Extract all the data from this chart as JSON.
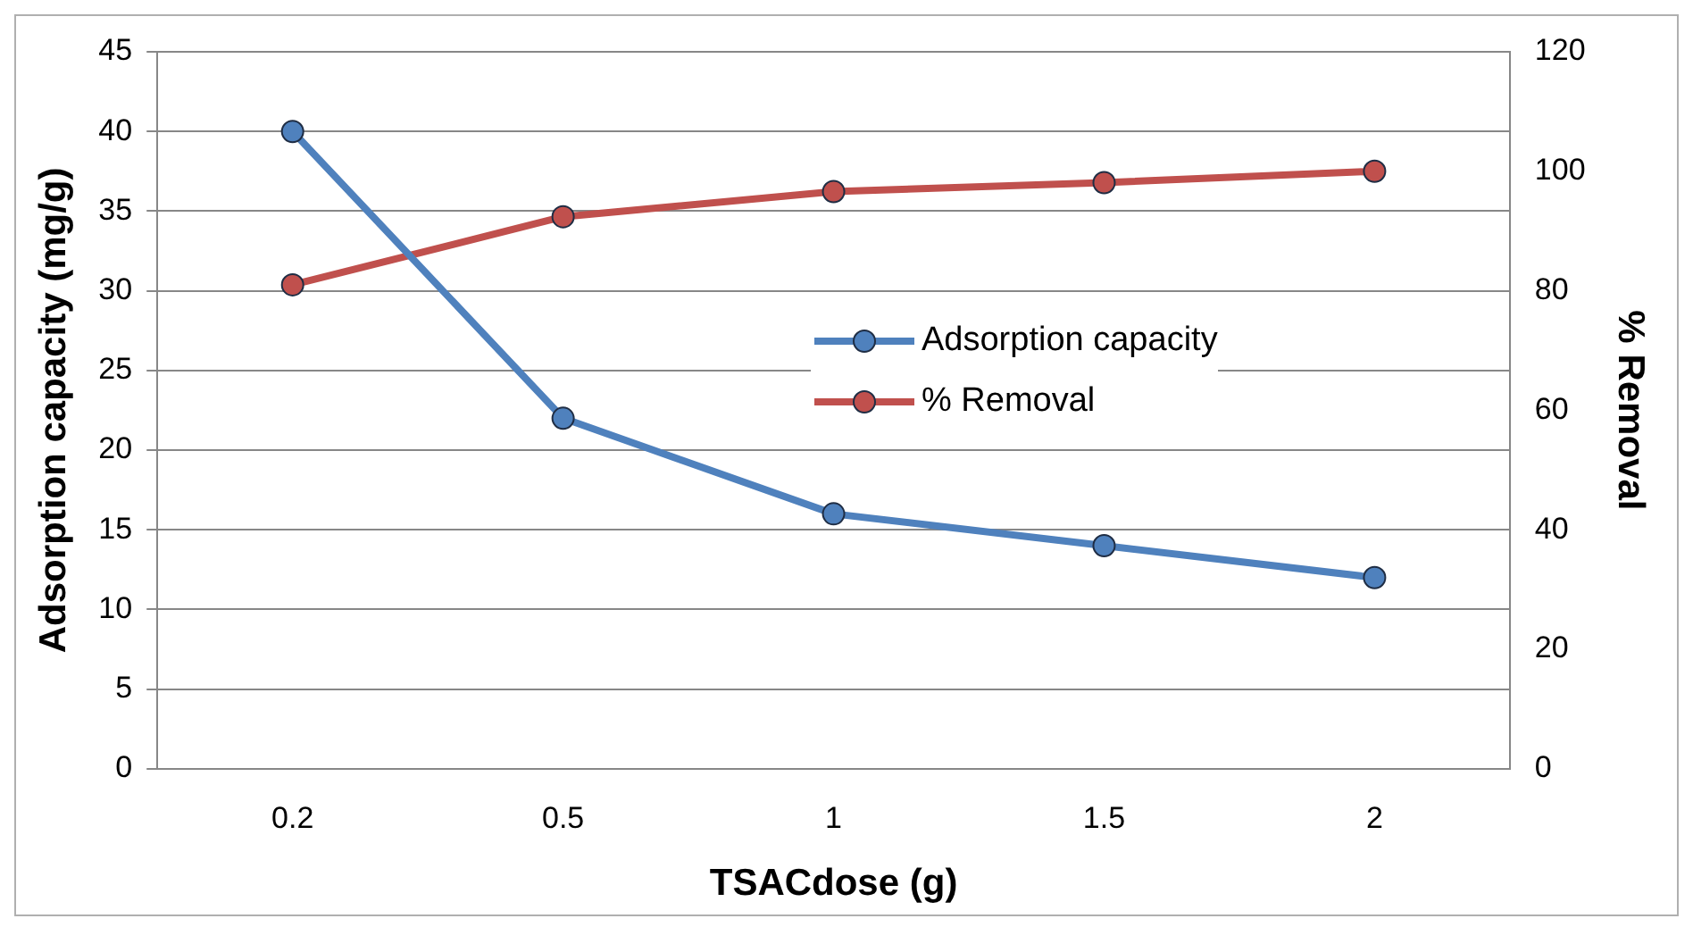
{
  "chart_data": {
    "type": "line",
    "xlabel": "TSACdose (g)",
    "ylabel": "Adsorption capacity (mg/g)",
    "y2label": "% Removal",
    "categories": [
      "0.2",
      "0.5",
      "1",
      "1.5",
      "2"
    ],
    "series": [
      {
        "name": "Adsorption capacity",
        "color": "#4f81bd",
        "values": [
          40,
          22,
          16,
          14,
          12
        ]
      },
      {
        "name": "% Removal",
        "color": "#c0504d",
        "values": [
          81,
          92.4,
          96.6,
          98.1,
          100
        ],
        "axis": "y2"
      }
    ],
    "ylim": [
      0,
      45
    ],
    "yticks": [
      0,
      5,
      10,
      15,
      20,
      25,
      30,
      35,
      40,
      45
    ],
    "y2lim": [
      0,
      120
    ],
    "y2ticks": [
      0,
      20,
      40,
      60,
      80,
      100,
      120
    ],
    "grid": "y",
    "legend": "right",
    "marker": "circle",
    "line_style": "solid"
  }
}
